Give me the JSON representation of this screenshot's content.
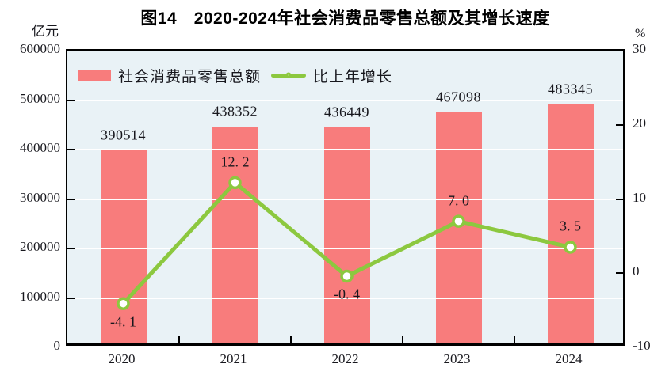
{
  "chart_data": {
    "type": "bar-line-combo",
    "figure_number": "图14",
    "title": "图14　2020-2024年社会消费品零售总额及其增长速度",
    "categories": [
      "2020",
      "2021",
      "2022",
      "2023",
      "2024"
    ],
    "series": [
      {
        "name": "社会消费品零售总额",
        "type": "bar",
        "axis": "left",
        "color": "#F87C7C",
        "values": [
          390514,
          438352,
          436449,
          467098,
          483345
        ],
        "value_labels": [
          "390514",
          "438352",
          "436449",
          "467098",
          "483345"
        ]
      },
      {
        "name": "比上年增长",
        "type": "line",
        "axis": "right",
        "color": "#8CC83F",
        "marker": "circle-white-fill",
        "values": [
          -4.1,
          12.2,
          -0.4,
          7.0,
          3.5
        ],
        "value_labels": [
          "-4. 1",
          "12. 2",
          "-0. 4",
          "7. 0",
          "3. 5"
        ],
        "label_positions": [
          "below",
          "above",
          "below",
          "above",
          "above"
        ]
      }
    ],
    "left_axis": {
      "unit": "亿元",
      "min": 0,
      "max": 600000,
      "tick_interval": 100000,
      "tick_labels": [
        "0",
        "100000",
        "200000",
        "300000",
        "400000",
        "500000",
        "600000"
      ]
    },
    "right_axis": {
      "unit": "%",
      "min": -10,
      "max": 30,
      "tick_interval": 10,
      "tick_labels": [
        "-10",
        "0",
        "10",
        "20",
        "30"
      ]
    },
    "legend": {
      "position": "top-left-inside"
    },
    "grid": {
      "horizontal": true,
      "color": "#FFFFFF"
    },
    "plot_background": "#E9F2F6",
    "text_color": "#17171d"
  }
}
